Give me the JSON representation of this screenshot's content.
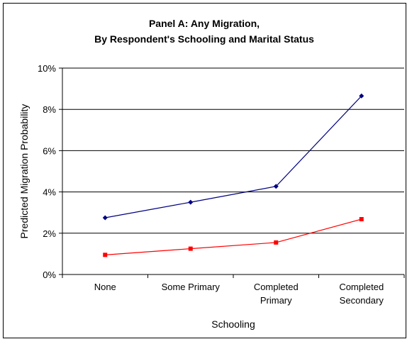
{
  "chart_data": {
    "type": "line",
    "title": [
      "Panel A: Any Migration,",
      "By Respondent's Schooling and Marital Status"
    ],
    "xlabel": "Schooling",
    "ylabel": "Predicted Migration Probability",
    "categories": [
      [
        "None"
      ],
      [
        "Some Primary"
      ],
      [
        "Completed",
        "Primary"
      ],
      [
        "Completed",
        "Secondary"
      ]
    ],
    "ylim": [
      0,
      10
    ],
    "yticks": [
      0,
      2,
      4,
      6,
      8,
      10
    ],
    "ytick_labels": [
      "0%",
      "2%",
      "4%",
      "6%",
      "8%",
      "10%"
    ],
    "grid": true,
    "legend": "none",
    "series": [
      {
        "values": [
          2.75,
          3.5,
          4.27,
          8.65
        ],
        "color": "#000080",
        "marker": "diamond"
      },
      {
        "values": [
          0.95,
          1.25,
          1.55,
          2.68
        ],
        "color": "#ff0000",
        "marker": "square"
      }
    ]
  }
}
